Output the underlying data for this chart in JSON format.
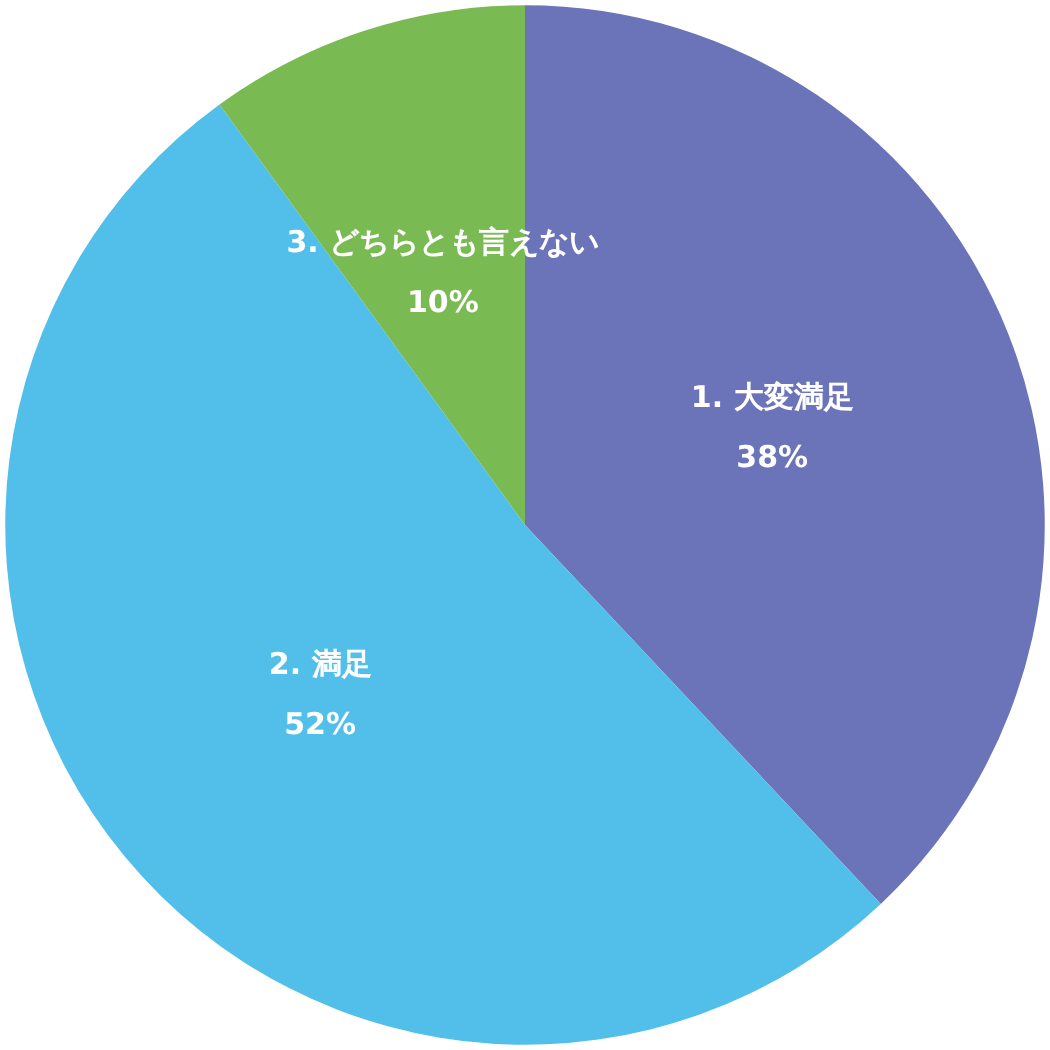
{
  "chart_data": {
    "type": "pie",
    "categories": [
      "1. 大変満足",
      "2. 満足",
      "3. どちらとも言えない"
    ],
    "values": [
      38,
      52,
      10
    ],
    "value_labels": [
      "38%",
      "52%",
      "10%"
    ],
    "colors": [
      "#6b74b8",
      "#52bfea",
      "#7aba52"
    ],
    "legend": false
  }
}
